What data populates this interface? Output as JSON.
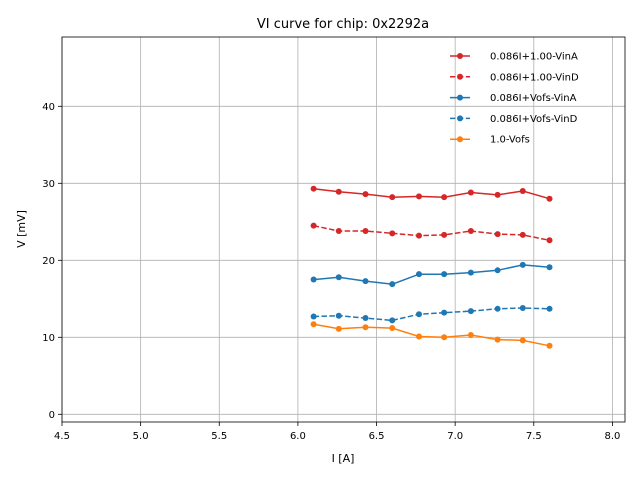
{
  "chart_data": {
    "type": "line",
    "title": "VI curve for chip: 0x2292a",
    "xlabel": "I [A]",
    "ylabel": "V [mV]",
    "xlim": [
      4.5,
      8.08
    ],
    "ylim": [
      -1,
      49
    ],
    "xticks": [
      4.5,
      5.0,
      5.5,
      6.0,
      6.5,
      7.0,
      7.5,
      8.0
    ],
    "xtick_labels": [
      "4.5",
      "5.0",
      "5.5",
      "6.0",
      "6.5",
      "7.0",
      "7.5",
      "8.0"
    ],
    "yticks": [
      0,
      10,
      20,
      30,
      40
    ],
    "ytick_labels": [
      "0",
      "10",
      "20",
      "30",
      "40"
    ],
    "grid": true,
    "legend_position": "top-right",
    "x": [
      6.1,
      6.26,
      6.43,
      6.6,
      6.77,
      6.93,
      7.1,
      7.27,
      7.43,
      7.6
    ],
    "series": [
      {
        "name": "0.086I+1.00-VinA",
        "color": "#d62728",
        "dashed": false,
        "values": [
          29.3,
          28.9,
          28.6,
          28.2,
          28.3,
          28.2,
          28.8,
          28.5,
          29.0,
          28.0
        ]
      },
      {
        "name": "0.086I+1.00-VinD",
        "color": "#d62728",
        "dashed": true,
        "values": [
          24.5,
          23.8,
          23.8,
          23.5,
          23.2,
          23.3,
          23.8,
          23.4,
          23.3,
          22.6
        ]
      },
      {
        "name": "0.086I+Vofs-VinA",
        "color": "#1f77b4",
        "dashed": false,
        "values": [
          17.5,
          17.8,
          17.3,
          16.9,
          18.2,
          18.2,
          18.4,
          18.7,
          19.4,
          19.1
        ]
      },
      {
        "name": "0.086I+Vofs-VinD",
        "color": "#1f77b4",
        "dashed": true,
        "values": [
          12.7,
          12.8,
          12.5,
          12.2,
          13.0,
          13.2,
          13.4,
          13.7,
          13.8,
          13.7
        ]
      },
      {
        "name": "1.0-Vofs",
        "color": "#ff7f0e",
        "dashed": false,
        "values": [
          11.7,
          11.1,
          11.3,
          11.2,
          10.1,
          10.0,
          10.3,
          9.7,
          9.6,
          8.9
        ]
      }
    ]
  }
}
